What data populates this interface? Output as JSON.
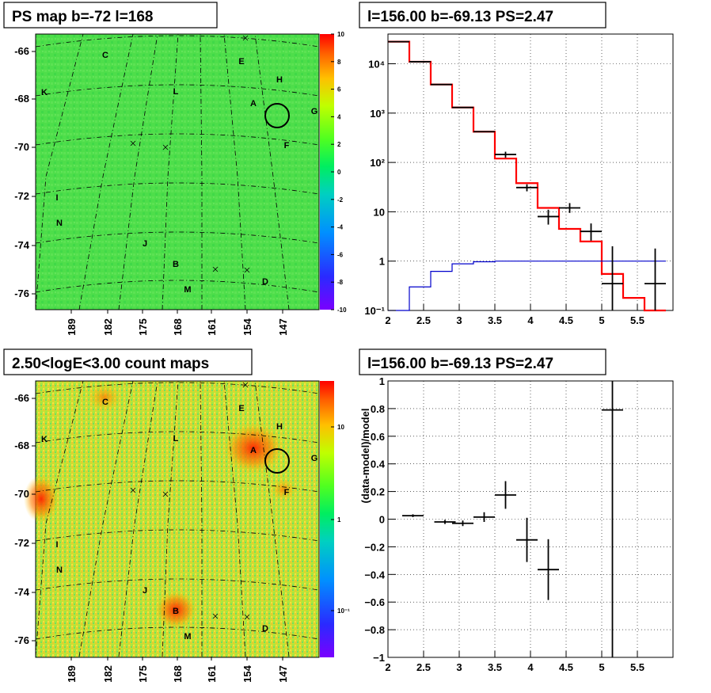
{
  "chart_data": [
    {
      "type": "heatmap",
      "title": "PS map b=-72 l=168",
      "y_ticks": [
        "-66",
        "-68",
        "-70",
        "-72",
        "-74",
        "-76"
      ],
      "x_ticks": [
        "189",
        "182",
        "175",
        "168",
        "161",
        "154",
        "147"
      ],
      "colorbar_ticks": [
        "10",
        "8",
        "6",
        "4",
        "2",
        "0",
        "-2",
        "-4",
        "-6",
        "-8",
        "-10"
      ],
      "source_labels": [
        "A",
        "B",
        "C",
        "D",
        "E",
        "F",
        "G",
        "H",
        "I",
        "J",
        "K",
        "L",
        "M",
        "N"
      ]
    },
    {
      "type": "line",
      "title": "l=156.00 b=-69.13 PS=2.47",
      "log_y": true,
      "xlim": [
        2,
        6
      ],
      "ylim": [
        0.1,
        40000
      ],
      "x_ticks": [
        "2",
        "2.5",
        "3",
        "3.5",
        "4",
        "4.5",
        "5",
        "5.5"
      ],
      "y_ticks": [
        "10⁴",
        "10³",
        "10²",
        "10",
        "1",
        "10⁻¹"
      ],
      "grid": true,
      "series": [
        {
          "kind": "step",
          "color": "#ff0000",
          "edges": [
            2.0,
            2.3,
            2.6,
            2.9,
            3.2,
            3.5,
            3.8,
            4.1,
            4.4,
            4.7,
            5.0,
            5.3,
            5.6,
            5.9
          ],
          "values": [
            28000,
            11000,
            3800,
            1300,
            420,
            120,
            38,
            12,
            4.5,
            2.5,
            0.55,
            0.18,
            0.08
          ]
        },
        {
          "kind": "step",
          "color": "#0000cc",
          "edges": [
            2.0,
            2.3,
            2.6,
            2.9,
            3.2,
            3.5,
            3.8,
            4.1,
            4.4,
            4.7,
            5.0,
            5.3,
            5.6,
            5.9
          ],
          "values": [
            0.05,
            0.3,
            0.62,
            0.88,
            0.97,
            1.0,
            1.0,
            1.0,
            1.0,
            1.0,
            1.0,
            1.0,
            1.0
          ]
        },
        {
          "kind": "points",
          "color": "#000000",
          "x": [
            2.15,
            2.45,
            2.75,
            3.05,
            3.35,
            3.65,
            3.95,
            4.25,
            4.55,
            4.85,
            5.15,
            5.75
          ],
          "y": [
            28000,
            11000,
            3800,
            1300,
            420,
            145,
            31,
            8,
            12,
            4,
            0.35,
            0.35
          ],
          "xerr": 0.15,
          "ylo": [
            28000,
            11000,
            3800,
            1300,
            420,
            125,
            26,
            5.5,
            9.5,
            2.6,
            0.05,
            0.05
          ],
          "yhi": [
            28000,
            11000,
            3800,
            1300,
            420,
            165,
            36,
            11,
            15,
            5.8,
            2,
            1.8
          ]
        }
      ]
    },
    {
      "type": "heatmap",
      "title": "2.50<logE<3.00 count maps",
      "log_colorbar": true,
      "y_ticks": [
        "-66",
        "-68",
        "-70",
        "-72",
        "-74",
        "-76"
      ],
      "x_ticks": [
        "189",
        "182",
        "175",
        "168",
        "161",
        "154",
        "147"
      ],
      "colorbar_ticks": [
        "10",
        "1",
        "10⁻¹"
      ],
      "source_labels": [
        "A",
        "B",
        "C",
        "D",
        "E",
        "F",
        "G",
        "H",
        "I",
        "J",
        "K",
        "L",
        "M",
        "N"
      ]
    },
    {
      "type": "scatter",
      "title": "l=156.00 b=-69.13 PS=2.47",
      "ylabel": "(data-model)/model",
      "xlim": [
        2,
        6
      ],
      "ylim": [
        -1,
        1
      ],
      "x_ticks": [
        "2",
        "2.5",
        "3",
        "3.5",
        "4",
        "4.5",
        "5",
        "5.5"
      ],
      "y_ticks": [
        "1",
        "0.8",
        "0.6",
        "0.4",
        "0.2",
        "0",
        "−0.2",
        "−0.4",
        "−0.6",
        "−0.8",
        "−1"
      ],
      "grid": true,
      "x": [
        2.35,
        2.8,
        3.05,
        3.35,
        3.65,
        3.95,
        4.25,
        5.15
      ],
      "y": [
        0.025,
        -0.02,
        -0.03,
        0.015,
        0.175,
        -0.15,
        -0.365,
        0.79
      ],
      "xerr": 0.15,
      "yerr": [
        0.01,
        0.015,
        0.02,
        0.035,
        0.1,
        0.16,
        0.22,
        1.9
      ]
    }
  ]
}
